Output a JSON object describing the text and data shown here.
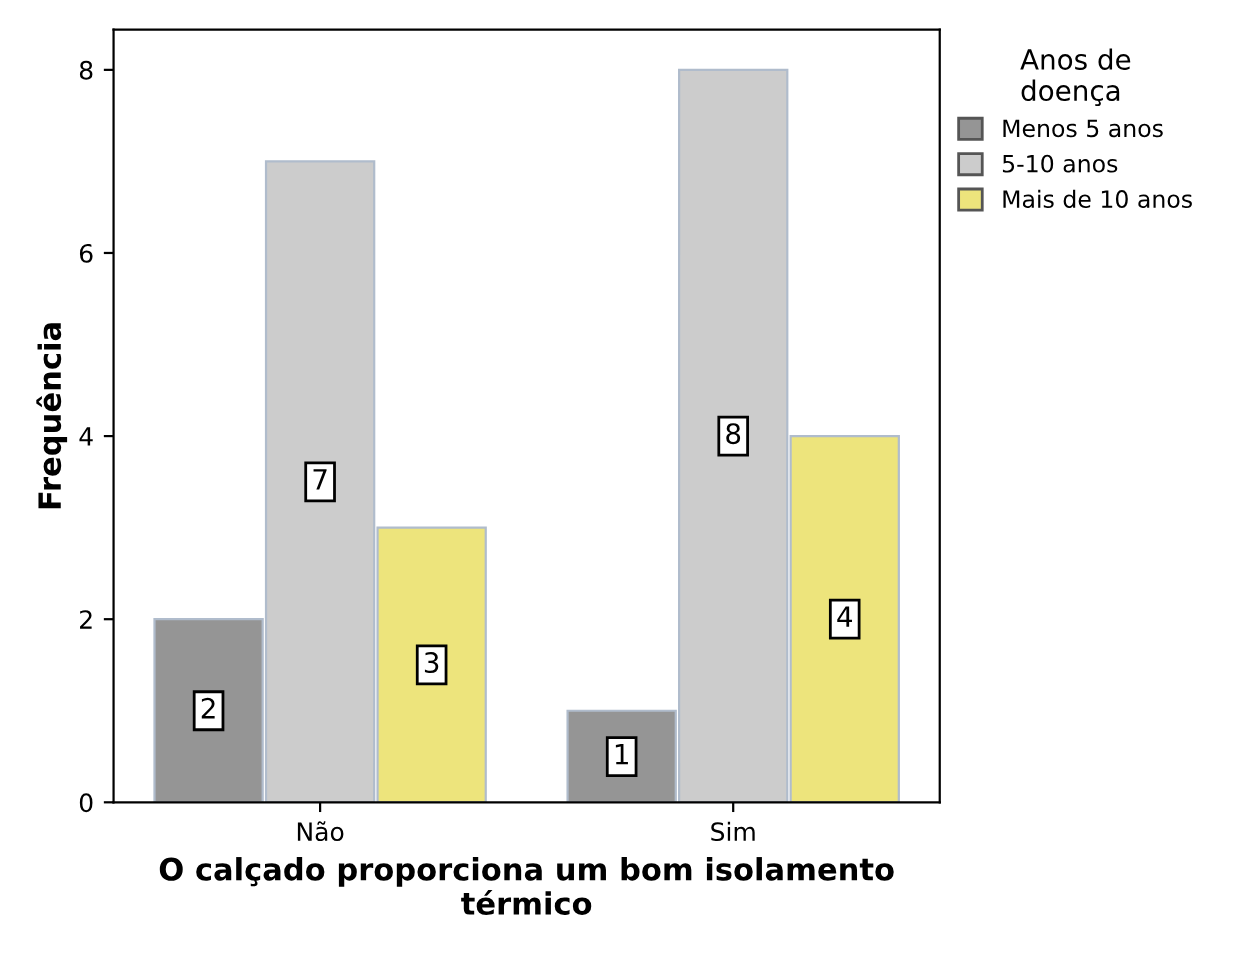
{
  "chart_data": {
    "type": "bar",
    "categories": [
      "Não",
      "Sim"
    ],
    "xlabel": "O calçado proporciona um bom isolamento\ntérmico",
    "ylabel": "Frequência",
    "legend_title": "Anos de\ndoença",
    "series": [
      {
        "name": "Menos 5 anos",
        "color": "#959595",
        "values": [
          2,
          1
        ]
      },
      {
        "name": "5-10 anos",
        "color": "#cccccc",
        "values": [
          7,
          8
        ]
      },
      {
        "name": "Mais de 10 anos",
        "color": "#ede47c",
        "values": [
          3,
          4
        ]
      }
    ],
    "ylim": [
      0,
      8.44
    ],
    "yticks": [
      0,
      2,
      4,
      6,
      8
    ],
    "data_labels": true,
    "grid": false,
    "legend": "top right"
  }
}
